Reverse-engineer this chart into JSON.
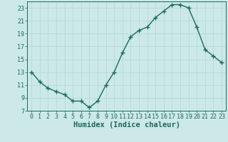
{
  "x": [
    0,
    1,
    2,
    3,
    4,
    5,
    6,
    7,
    8,
    9,
    10,
    11,
    12,
    13,
    14,
    15,
    16,
    17,
    18,
    19,
    20,
    21,
    22,
    23
  ],
  "y": [
    13,
    11.5,
    10.5,
    10,
    9.5,
    8.5,
    8.5,
    7.5,
    8.5,
    11,
    13,
    16,
    18.5,
    19.5,
    20,
    21.5,
    22.5,
    23.5,
    23.5,
    23,
    20,
    16.5,
    15.5,
    14.5
  ],
  "line_color": "#1a6b5a",
  "marker": "+",
  "marker_size": 4,
  "background_color": "#cce8e8",
  "grid_color": "#b0d8d8",
  "xlabel": "Humidex (Indice chaleur)",
  "xlim": [
    -0.5,
    23.5
  ],
  "ylim": [
    7,
    24
  ],
  "yticks": [
    7,
    9,
    11,
    13,
    15,
    17,
    19,
    21,
    23
  ],
  "xticks": [
    0,
    1,
    2,
    3,
    4,
    5,
    6,
    7,
    8,
    9,
    10,
    11,
    12,
    13,
    14,
    15,
    16,
    17,
    18,
    19,
    20,
    21,
    22,
    23
  ],
  "tick_label_fontsize": 6,
  "xlabel_fontsize": 7.5,
  "line_width": 1.0
}
